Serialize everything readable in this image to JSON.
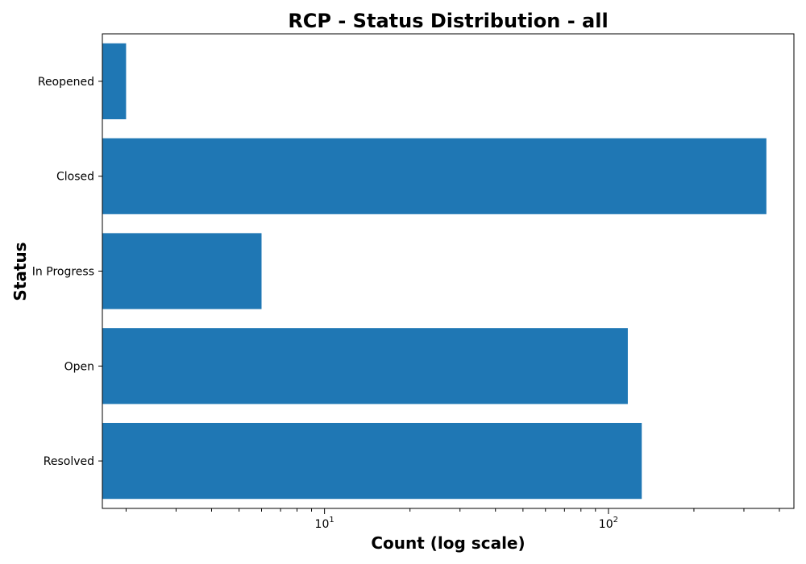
{
  "chart_data": {
    "type": "bar",
    "orientation": "horizontal",
    "title": "RCP - Status Distribution - all",
    "xlabel": "Count (log scale)",
    "ylabel": "Status",
    "x_scale": "log",
    "xlim": [
      1.65,
      450
    ],
    "x_ticks": [
      {
        "value": 10,
        "base": "10",
        "exponent": "1"
      },
      {
        "value": 100,
        "base": "10",
        "exponent": "2"
      }
    ],
    "categories": [
      "Reopened",
      "Closed",
      "In Progress",
      "Open",
      "Resolved"
    ],
    "values": [
      2,
      360,
      6,
      117,
      131
    ],
    "bar_color": "#1f77b4",
    "grid": false,
    "legend": "none"
  }
}
